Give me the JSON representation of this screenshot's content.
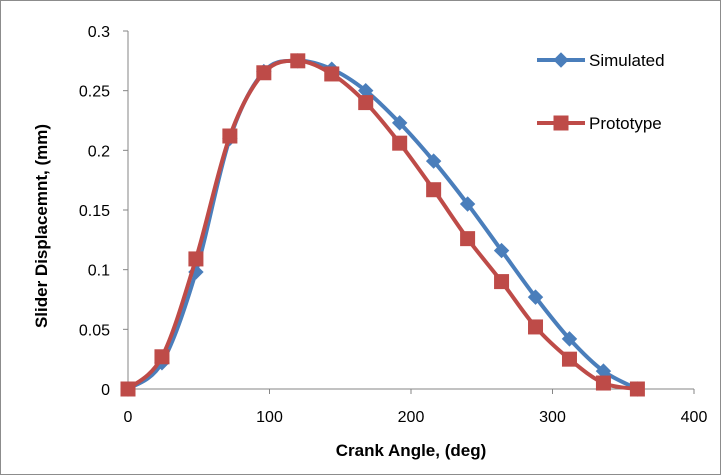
{
  "chart_data": {
    "type": "line",
    "title": "",
    "xlabel": "Crank Angle, (deg)",
    "ylabel": "Slider Displacemnt, (mm)",
    "xlim": [
      0,
      400
    ],
    "ylim": [
      0,
      0.3
    ],
    "x_ticks": [
      "0",
      "100",
      "200",
      "300",
      "400"
    ],
    "y_ticks": [
      "0",
      "0.05",
      "0.1",
      "0.15",
      "0.2",
      "0.25",
      "0.3"
    ],
    "grid": false,
    "legend_position": "top-right",
    "x": [
      0,
      24,
      48,
      72,
      96,
      120,
      144,
      168,
      192,
      216,
      240,
      264,
      288,
      312,
      336,
      360
    ],
    "series": [
      {
        "name": "Simulated",
        "color": "#4a7ebb",
        "marker": "diamond",
        "values": [
          0,
          0.022,
          0.098,
          0.21,
          0.266,
          0.275,
          0.268,
          0.25,
          0.223,
          0.191,
          0.155,
          0.116,
          0.077,
          0.042,
          0.015,
          0
        ]
      },
      {
        "name": "Prototype",
        "color": "#be4b48",
        "marker": "square",
        "values": [
          0,
          0.027,
          0.109,
          0.212,
          0.265,
          0.275,
          0.264,
          0.24,
          0.206,
          0.167,
          0.126,
          0.09,
          0.052,
          0.025,
          0.005,
          0
        ]
      }
    ]
  }
}
